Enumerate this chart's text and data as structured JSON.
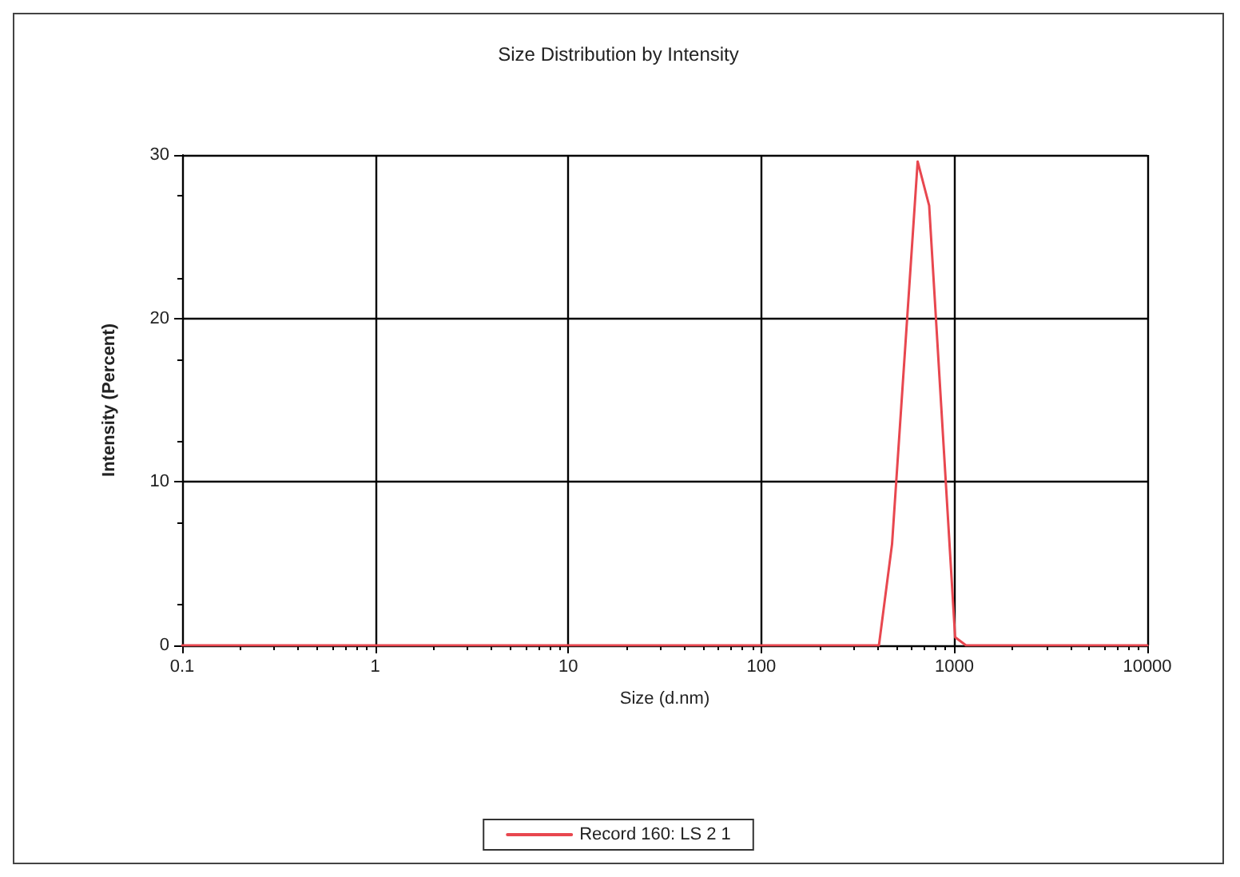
{
  "chart_data": {
    "type": "line",
    "title": "Size Distribution by Intensity",
    "xlabel": "Size (d.nm)",
    "ylabel": "Intensity (Percent)",
    "log": "x",
    "grid": true,
    "legend": "bottom",
    "marker": "none",
    "line_style": "solid",
    "xlim": [
      0.1,
      10000
    ],
    "xticks": [
      0.1,
      1,
      10,
      100,
      1000,
      10000
    ],
    "ylim": [
      0,
      30
    ],
    "yticks": [
      0,
      10,
      20,
      30
    ],
    "series": [
      {
        "name": "Record 160: LS 2 1",
        "color": "#e8474f",
        "x": [
          0.1,
          1,
          10,
          100,
          407,
          476,
          646,
          741,
          1010,
          1150,
          10000
        ],
        "values": [
          0,
          0,
          0,
          0,
          0,
          6.2,
          29.6,
          26.9,
          0.5,
          0,
          0
        ]
      }
    ]
  }
}
